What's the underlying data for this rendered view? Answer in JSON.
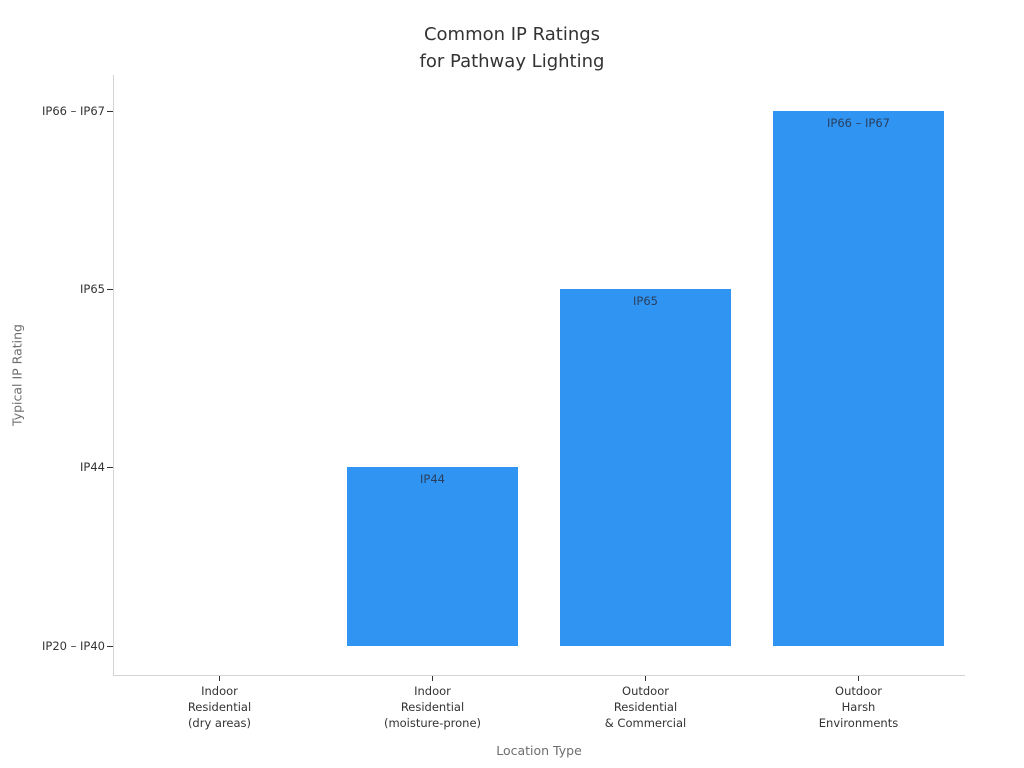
{
  "chart_data": {
    "type": "bar",
    "title": "Common IP Ratings\nfor Pathway Lighting",
    "xlabel": "Location Type",
    "ylabel": "Typical IP Rating",
    "categories": [
      "Indoor\nResidential\n(dry areas)",
      "Indoor\nResidential\n(moisture-prone)",
      "Outdoor\nResidential\n& Commercial",
      "Outdoor\nHarsh\nEnvironments"
    ],
    "values": [
      0,
      1,
      2,
      3
    ],
    "bar_labels": [
      "",
      "IP44",
      "IP65",
      "IP66 – IP67"
    ],
    "ytick_values": [
      0,
      1,
      2,
      3
    ],
    "ytick_labels": [
      "IP20 – IP40",
      "IP44",
      "IP65",
      "IP66 – IP67"
    ],
    "ylim": [
      -0.17,
      3.2
    ],
    "bar_width_frac": 0.8,
    "grid": false,
    "legend": "none",
    "colors": {
      "background": "#ffffff",
      "bar": "#3094f2",
      "bar_label_text": "#2a3f5f",
      "title_text": "#333333",
      "tick_text": "#333333",
      "axis_title_text": "#6e6e6e",
      "spine": "#d4d4d4",
      "tick_mark": "#333333"
    }
  }
}
